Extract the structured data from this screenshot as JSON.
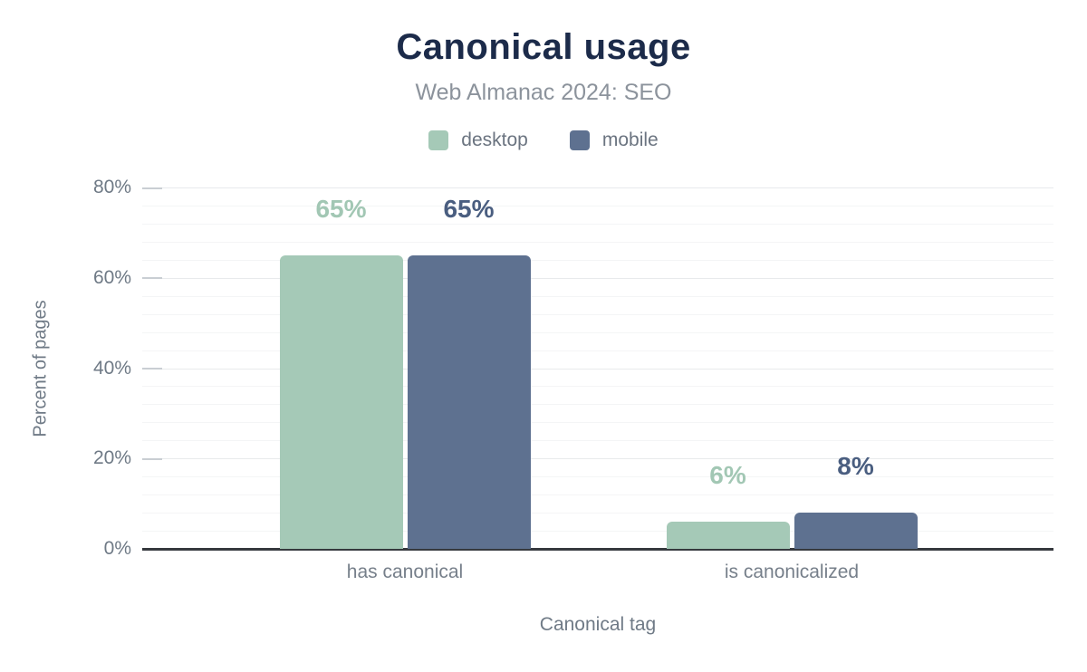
{
  "chart_data": {
    "type": "bar",
    "title": "Canonical usage",
    "subtitle": "Web Almanac 2024: SEO",
    "categories": [
      "has canonical",
      "is canonicalized"
    ],
    "series": [
      {
        "name": "desktop",
        "values": [
          65,
          6
        ],
        "labels": [
          "65%",
          "6%"
        ],
        "color": "#a5c9b7",
        "label_color": "#a2c7b4"
      },
      {
        "name": "mobile",
        "values": [
          65,
          8
        ],
        "labels": [
          "65%",
          "8%"
        ],
        "color": "#5e7190",
        "label_color": "#4a5e80"
      }
    ],
    "xlabel": "Canonical tag",
    "ylabel": "Percent of pages",
    "ylim": [
      0,
      80
    ],
    "yticks": [
      {
        "value": 0,
        "label": "0%"
      },
      {
        "value": 20,
        "label": "20%"
      },
      {
        "value": 40,
        "label": "40%"
      },
      {
        "value": 60,
        "label": "60%"
      },
      {
        "value": 80,
        "label": "80%"
      }
    ],
    "grid": {
      "minor_step": 4,
      "major_step": 20,
      "minor_on": true,
      "major_on": true
    },
    "legend_position": "top"
  },
  "colors": {
    "background": "#ffffff",
    "title": "#1c2b4a",
    "subtitle": "#8c939c",
    "axis_text": "#6f7a86",
    "category_text": "#767f8a",
    "legend_text": "#6b7480",
    "baseline": "#36393e",
    "gridline_major": "#e8eaec",
    "gridline_minor": "#f4f5f6",
    "tick": "#c9ced3"
  }
}
